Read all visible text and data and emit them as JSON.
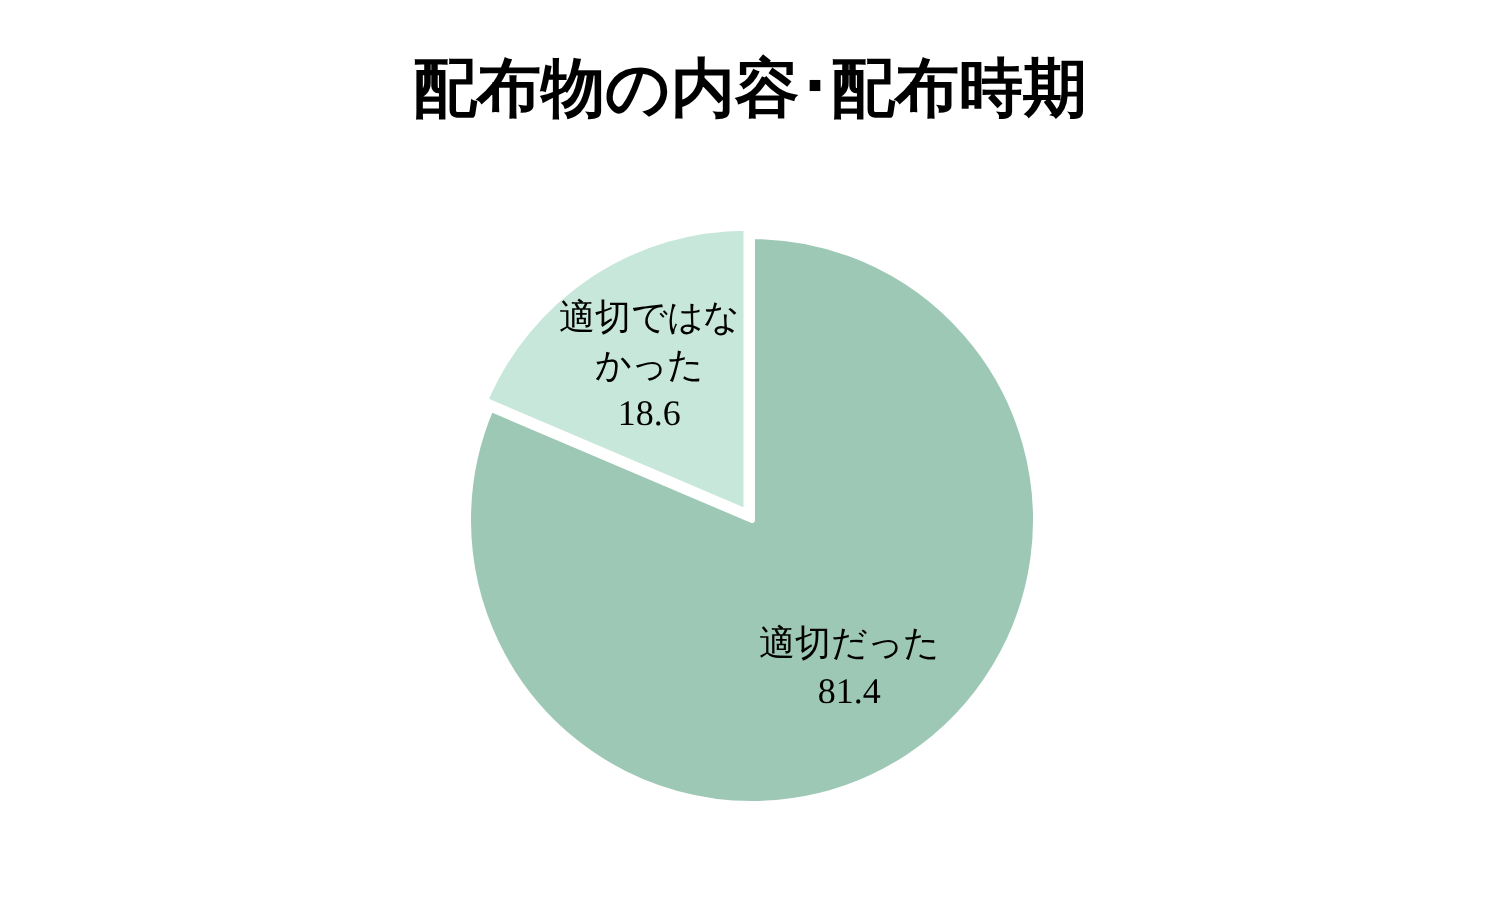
{
  "chart_data": {
    "type": "pie",
    "title": "配布物の内容･配布時期",
    "categories": [
      "適切だった",
      "適切ではなかった"
    ],
    "values": [
      81.4,
      18.6
    ],
    "colors": [
      "#9ec8b6",
      "#c6e7da"
    ],
    "data_labels": true
  }
}
